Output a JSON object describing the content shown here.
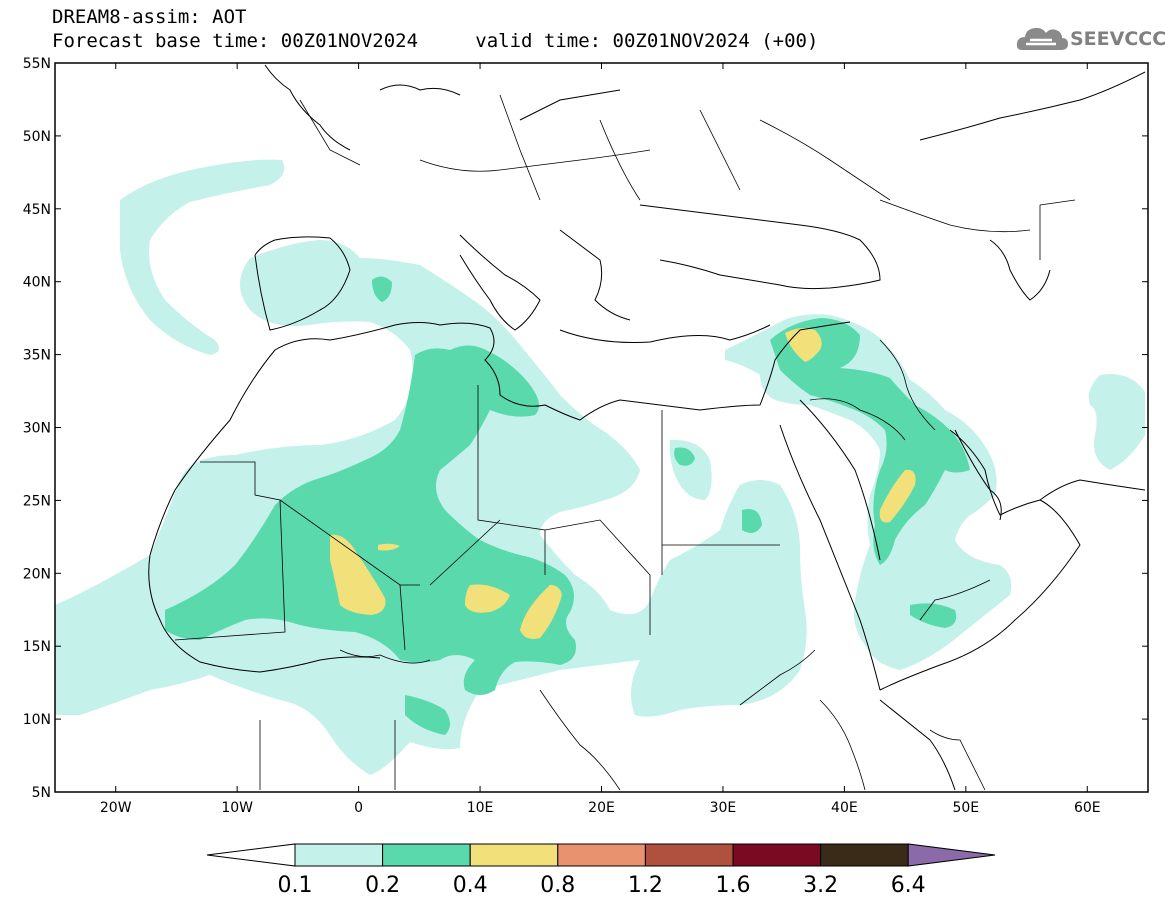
{
  "header": {
    "title": "DREAM8-assim: AOT",
    "base_time_label": "Forecast base time: 00Z01NOV2024",
    "valid_time_label": "valid time: 00Z01NOV2024 (+00)"
  },
  "logo": {
    "text": "SEEVCCC"
  },
  "map": {
    "lat_range": [
      5,
      55
    ],
    "lon_range": [
      -25,
      65
    ],
    "lat_ticks": [
      "5N",
      "10N",
      "15N",
      "20N",
      "25N",
      "30N",
      "35N",
      "40N",
      "45N",
      "50N",
      "55N"
    ],
    "lon_ticks": [
      "20W",
      "10W",
      "0",
      "10E",
      "20E",
      "30E",
      "40E",
      "50E",
      "60E"
    ]
  },
  "colorbar": {
    "labels": [
      "0.1",
      "0.2",
      "0.4",
      "0.8",
      "1.2",
      "1.6",
      "3.2",
      "6.4"
    ],
    "colors": [
      "#c4f1ea",
      "#5ad9ad",
      "#f2e07a",
      "#e89270",
      "#b0503e",
      "#7a0a22",
      "#3a2a18",
      "#8a6aa8"
    ],
    "under_color": "#ffffff"
  },
  "colors": {
    "aot_0_1": "#c4f1ea",
    "aot_0_2": "#5ad9ad",
    "aot_0_4": "#f2e07a"
  }
}
